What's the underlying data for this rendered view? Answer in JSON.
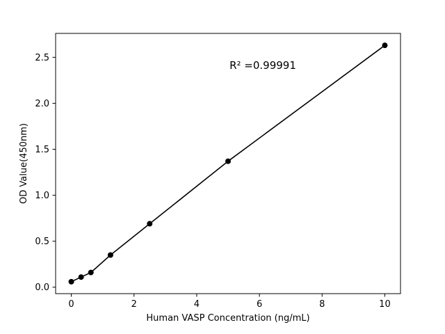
{
  "chart_data": {
    "type": "scatter",
    "title": "",
    "xlabel": "Human VASP Concentration (ng/mL)",
    "ylabel": "OD Value(450nm)",
    "x": [
      0,
      0.3125,
      0.625,
      1.25,
      2.5,
      5,
      10
    ],
    "y": [
      0.06,
      0.11,
      0.16,
      0.35,
      0.69,
      1.37,
      2.63
    ],
    "xlim": [
      -0.5,
      10.5
    ],
    "ylim": [
      -0.07,
      2.76
    ],
    "xticks": [
      0,
      2,
      4,
      6,
      8,
      10
    ],
    "xtick_labels": [
      "0",
      "2",
      "4",
      "6",
      "8",
      "10"
    ],
    "yticks": [
      0,
      0.5,
      1.0,
      1.5,
      2.0,
      2.5
    ],
    "ytick_labels": [
      "0.0",
      "0.5",
      "1.0",
      "1.5",
      "2.0",
      "2.5"
    ],
    "annotation": {
      "text": "R² =0.99991",
      "x": 6.1,
      "y": 2.4
    },
    "line_color": "#000000",
    "marker_color": "#000000",
    "marker_radius": 4,
    "grid": false,
    "legend": null
  }
}
